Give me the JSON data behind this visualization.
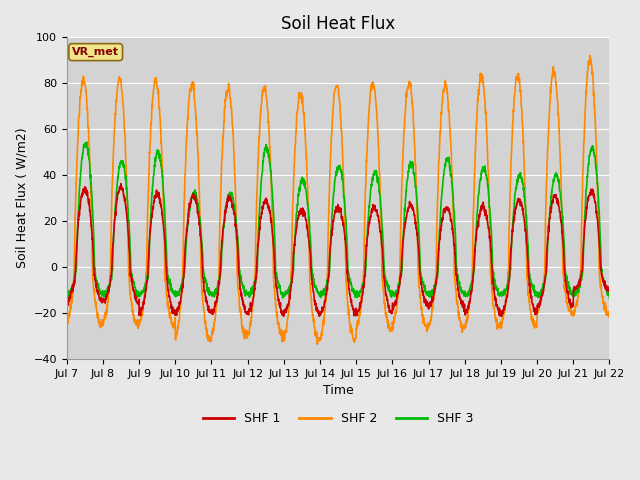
{
  "title": "Soil Heat Flux",
  "ylabel": "Soil Heat Flux ( W/m2)",
  "xlabel": "Time",
  "ylim": [
    -40,
    100
  ],
  "yticks": [
    -40,
    -20,
    0,
    20,
    40,
    60,
    80,
    100
  ],
  "x_tick_labels": [
    "Jul 7",
    "Jul 8",
    "Jul 9",
    "Jul 10",
    "Jul 11",
    "Jul 12",
    "Jul 13",
    "Jul 14",
    "Jul 15",
    "Jul 16",
    "Jul 17",
    "Jul 18",
    "Jul 19",
    "Jul 20",
    "Jul 21",
    "Jul 22"
  ],
  "colors": {
    "SHF1": "#cc0000",
    "SHF2": "#ff8800",
    "SHF3": "#00bb00"
  },
  "legend_labels": [
    "SHF 1",
    "SHF 2",
    "SHF 3"
  ],
  "annotation_text": "VR_met",
  "annotation_color": "#8b0000",
  "bg_color": "#e8e8e8",
  "plot_bg_color": "#d3d3d3",
  "linewidth": 1.2,
  "title_fontsize": 12,
  "label_fontsize": 9,
  "tick_fontsize": 8,
  "shf1_day_peaks": [
    34,
    35,
    32,
    31,
    30,
    29,
    25,
    26,
    26,
    27,
    26,
    26,
    29,
    31,
    33
  ],
  "shf1_night_troughs": [
    15,
    15,
    20,
    20,
    20,
    20,
    20,
    20,
    20,
    17,
    17,
    20,
    20,
    17,
    10
  ],
  "shf2_day_peaks": [
    82,
    82,
    81,
    80,
    78,
    78,
    75,
    79,
    80,
    80,
    79,
    83,
    83,
    85,
    90
  ],
  "shf2_night_troughs": [
    25,
    25,
    25,
    32,
    30,
    30,
    32,
    32,
    27,
    26,
    26,
    26,
    26,
    20,
    20
  ],
  "shf3_day_peaks": [
    54,
    46,
    50,
    32,
    32,
    52,
    38,
    44,
    41,
    45,
    47,
    43,
    40,
    40,
    52
  ],
  "shf3_night_troughs": [
    12,
    12,
    12,
    12,
    12,
    12,
    12,
    12,
    12,
    12,
    12,
    12,
    12,
    12,
    12
  ]
}
